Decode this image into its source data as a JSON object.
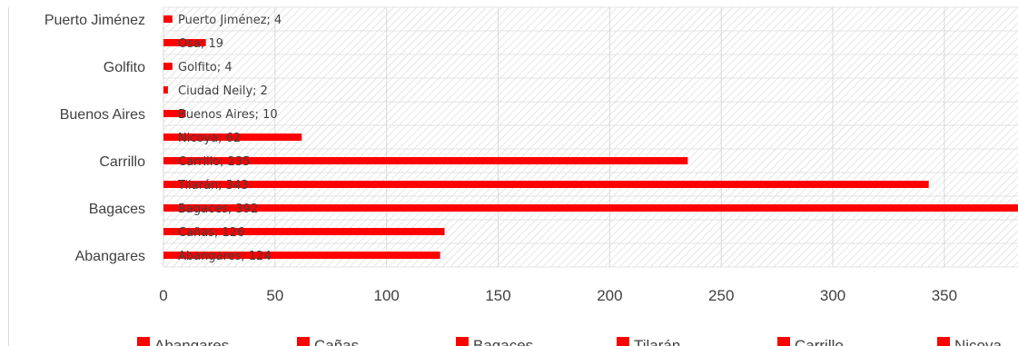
{
  "chart_data": {
    "type": "bar",
    "orientation": "horizontal",
    "categories": [
      "Abangares",
      "Cañas",
      "Bagaces",
      "Tilarán",
      "Carrillo",
      "Nicoya",
      "Buenos Aires",
      "Ciudad Neily",
      "Golfito",
      "Osa",
      "Puerto Jiménez"
    ],
    "category_axis_labels": [
      "Abangares",
      "Bagaces",
      "Carrillo",
      "Buenos Aires",
      "Golfito",
      "Puerto Jiménez"
    ],
    "values": [
      124,
      126,
      392,
      343,
      235,
      62,
      10,
      2,
      4,
      19,
      4
    ],
    "data_labels": [
      "Abangares; 124",
      "Cañas; 126",
      "Bagaces; 392",
      "Tilarán; 343",
      "Carrillo; 235",
      "Nicoya; 62",
      "Buenos Aires; 10",
      "Ciudad Neily; 2",
      "Golfito; 4",
      "Osa; 19",
      "Puerto Jiménez; 4"
    ],
    "xticks": [
      0,
      50,
      100,
      150,
      200,
      250,
      300,
      350
    ],
    "xlim": [
      0,
      383
    ],
    "bar_color": "#ff0000",
    "grid": true,
    "legend": {
      "position": "bottom",
      "entries": [
        "Abangares",
        "Cañas",
        "Bagaces",
        "Tilarán",
        "Carrillo",
        "Nicoya"
      ]
    },
    "title": "",
    "xlabel": "",
    "ylabel": ""
  }
}
